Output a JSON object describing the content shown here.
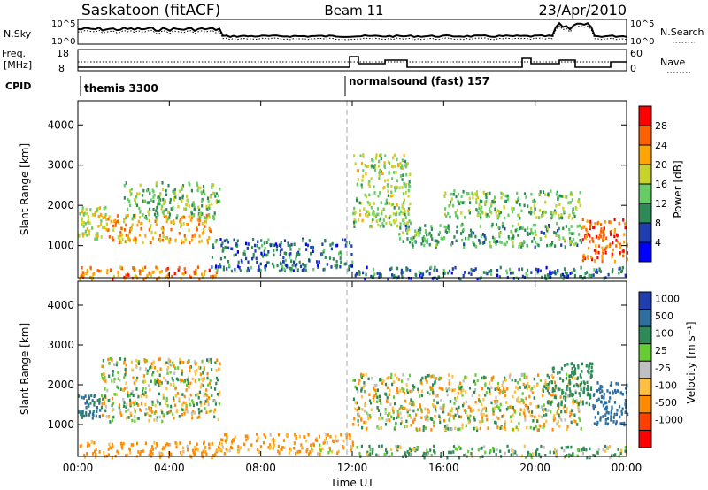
{
  "header": {
    "station": "Saskatoon (fitACF)",
    "beam": "Beam 11",
    "date": "23/Apr/2010"
  },
  "top_panels": {
    "nsky_label": "N.Sky",
    "nsky_ticks": [
      "10^5",
      "10^0"
    ],
    "nsearch_label": "N.Search",
    "nsearch_ticks": [
      "10^5",
      "10^0"
    ],
    "freq_label": "Freq.",
    "freq_unit": "[MHz]",
    "freq_ticks": [
      "18",
      "8"
    ],
    "nave_label": "Nave",
    "nave_ticks": [
      "60",
      "0"
    ],
    "cpid_label": "CPID",
    "cpid_segments": [
      "themis 3300",
      "normalsound (fast) 157"
    ]
  },
  "colors": {
    "power_scale": [
      "#0000ff",
      "#1f3fb0",
      "#2e8b57",
      "#66cc66",
      "#c8d22a",
      "#ffa500",
      "#ff6000",
      "#ff0000"
    ],
    "velocity_scale": [
      "#1f3fb0",
      "#2e6fa0",
      "#2e8b57",
      "#66cc33",
      "#c0c0c0",
      "#ffc040",
      "#ff8c00",
      "#ff4000",
      "#ff0000"
    ]
  },
  "chart_data": [
    {
      "type": "heatmap",
      "panel": "power",
      "ylabel": "Slant Range [km]",
      "ylim": [
        200,
        4600
      ],
      "yticks": [
        "1000",
        "2000",
        "3000",
        "4000"
      ],
      "xlim_hours": [
        0,
        24
      ],
      "xticks": [
        "00:00",
        "04:00",
        "08:00",
        "12:00",
        "16:00",
        "20:00",
        "00:00"
      ],
      "colorbar_label": "Power [dB]",
      "colorbar_ticks": [
        "4",
        "8",
        "12",
        "16",
        "20",
        "24",
        "28"
      ],
      "colorbar_range": [
        0,
        32
      ],
      "regions": [
        {
          "t": [
            0.0,
            6.2
          ],
          "r": [
            200,
            500
          ],
          "level": 24
        },
        {
          "t": [
            0.0,
            1.2
          ],
          "r": [
            1200,
            2000
          ],
          "level": 18
        },
        {
          "t": [
            1.2,
            5.8
          ],
          "r": [
            1100,
            1800
          ],
          "level": 22
        },
        {
          "t": [
            2.0,
            6.2
          ],
          "r": [
            1700,
            2600
          ],
          "level": 14
        },
        {
          "t": [
            5.8,
            12.0
          ],
          "r": [
            400,
            1200
          ],
          "level": 8
        },
        {
          "t": [
            12.0,
            24.0
          ],
          "r": [
            200,
            500
          ],
          "level": 8
        },
        {
          "t": [
            12.0,
            14.5
          ],
          "r": [
            1500,
            3300
          ],
          "level": 16
        },
        {
          "t": [
            14.0,
            22.0
          ],
          "r": [
            1000,
            1600
          ],
          "level": 12
        },
        {
          "t": [
            16.0,
            22.0
          ],
          "r": [
            1700,
            2400
          ],
          "level": 14
        },
        {
          "t": [
            22.0,
            24.0
          ],
          "r": [
            600,
            1700
          ],
          "level": 26
        }
      ]
    },
    {
      "type": "heatmap",
      "panel": "velocity",
      "ylabel": "Slant Range [km]",
      "ylim": [
        200,
        4600
      ],
      "yticks": [
        "1000",
        "2000",
        "3000",
        "4000"
      ],
      "xlim_hours": [
        0,
        24
      ],
      "xticks": [
        "00:00",
        "04:00",
        "08:00",
        "12:00",
        "16:00",
        "20:00",
        "00:00"
      ],
      "xlabel": "Time UT",
      "colorbar_label": "Velocity [m s⁻¹]",
      "colorbar_ticks": [
        "1000",
        "500",
        "100",
        "25",
        "-25",
        "-100",
        "-500",
        "-1000"
      ],
      "regions": [
        {
          "t": [
            0.0,
            6.2
          ],
          "r": [
            200,
            600
          ],
          "velocity": -200
        },
        {
          "t": [
            0.0,
            1.0
          ],
          "r": [
            1200,
            1800
          ],
          "velocity": 600
        },
        {
          "t": [
            1.0,
            6.2
          ],
          "r": [
            1100,
            2700
          ],
          "velocity": 0
        },
        {
          "t": [
            6.2,
            12.0
          ],
          "r": [
            300,
            800
          ],
          "velocity": -150
        },
        {
          "t": [
            12.0,
            24.0
          ],
          "r": [
            200,
            500
          ],
          "velocity": 120
        },
        {
          "t": [
            12.0,
            22.0
          ],
          "r": [
            900,
            2300
          ],
          "velocity": 0
        },
        {
          "t": [
            20.5,
            22.5
          ],
          "r": [
            1500,
            2600
          ],
          "velocity": 300
        },
        {
          "t": [
            22.5,
            24.0
          ],
          "r": [
            1000,
            2100
          ],
          "velocity": 700
        }
      ]
    }
  ]
}
